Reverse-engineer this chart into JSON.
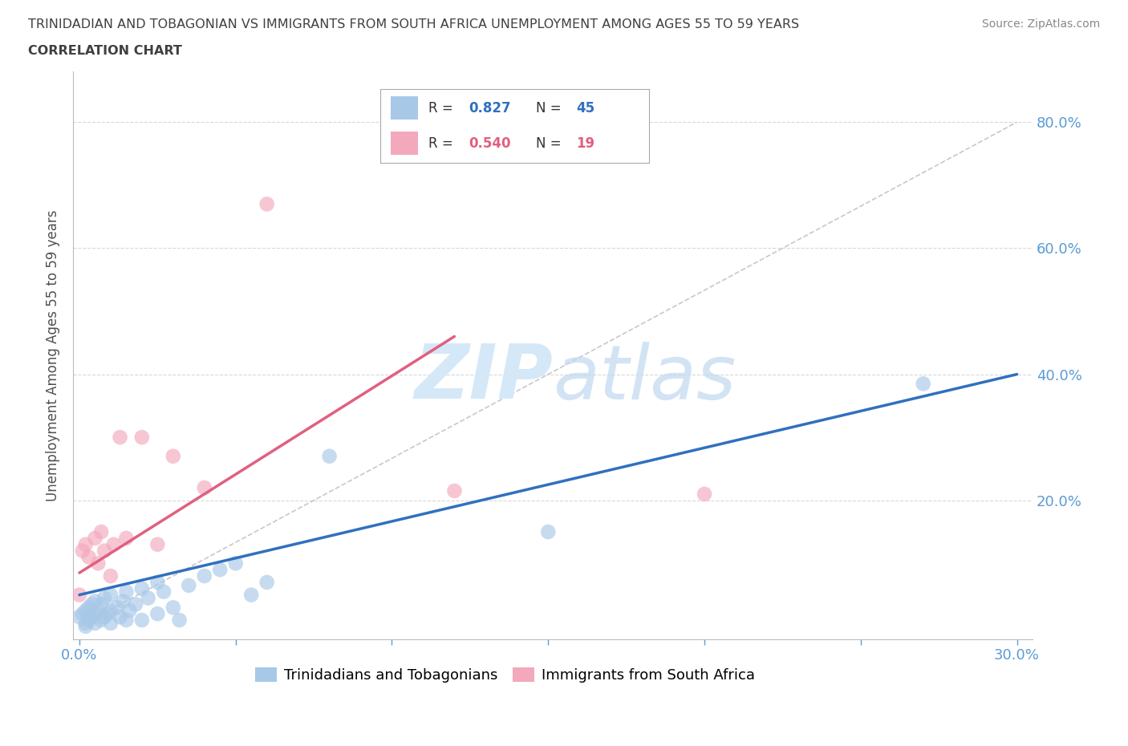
{
  "title_line1": "TRINIDADIAN AND TOBAGONIAN VS IMMIGRANTS FROM SOUTH AFRICA UNEMPLOYMENT AMONG AGES 55 TO 59 YEARS",
  "title_line2": "CORRELATION CHART",
  "source_text": "Source: ZipAtlas.com",
  "ylabel": "Unemployment Among Ages 55 to 59 years",
  "xlim": [
    -0.002,
    0.305
  ],
  "ylim": [
    -0.02,
    0.88
  ],
  "blue_legend_R": "0.827",
  "blue_legend_N": "45",
  "pink_legend_R": "0.540",
  "pink_legend_N": "19",
  "blue_color": "#a8c8e8",
  "pink_color": "#f4a8bc",
  "blue_line_color": "#3070c0",
  "pink_line_color": "#e06080",
  "ref_line_color": "#c8c8c8",
  "grid_color": "#d8d8d8",
  "title_color": "#404040",
  "axis_color": "#5b9bd5",
  "background_color": "#ffffff",
  "blue_scatter_x": [
    0.0,
    0.001,
    0.002,
    0.002,
    0.003,
    0.003,
    0.004,
    0.004,
    0.005,
    0.005,
    0.005,
    0.006,
    0.007,
    0.007,
    0.008,
    0.008,
    0.009,
    0.01,
    0.01,
    0.01,
    0.012,
    0.013,
    0.014,
    0.015,
    0.015,
    0.016,
    0.018,
    0.02,
    0.02,
    0.022,
    0.025,
    0.025,
    0.027,
    0.03,
    0.032,
    0.035,
    0.04,
    0.045,
    0.05,
    0.055,
    0.06,
    0.08,
    0.15,
    0.27,
    0.002
  ],
  "blue_scatter_y": [
    0.015,
    0.02,
    0.005,
    0.025,
    0.01,
    0.03,
    0.015,
    0.035,
    0.005,
    0.02,
    0.04,
    0.025,
    0.01,
    0.035,
    0.015,
    0.045,
    0.02,
    0.005,
    0.025,
    0.05,
    0.03,
    0.015,
    0.04,
    0.01,
    0.055,
    0.025,
    0.035,
    0.01,
    0.06,
    0.045,
    0.02,
    0.07,
    0.055,
    0.03,
    0.01,
    0.065,
    0.08,
    0.09,
    0.1,
    0.05,
    0.07,
    0.27,
    0.15,
    0.385,
    0.0
  ],
  "pink_scatter_x": [
    0.0,
    0.001,
    0.002,
    0.003,
    0.005,
    0.006,
    0.007,
    0.008,
    0.01,
    0.011,
    0.013,
    0.015,
    0.02,
    0.025,
    0.03,
    0.04,
    0.06,
    0.12,
    0.2
  ],
  "pink_scatter_y": [
    0.05,
    0.12,
    0.13,
    0.11,
    0.14,
    0.1,
    0.15,
    0.12,
    0.08,
    0.13,
    0.3,
    0.14,
    0.3,
    0.13,
    0.27,
    0.22,
    0.67,
    0.215,
    0.21
  ],
  "blue_trend_x0": 0.0,
  "blue_trend_x1": 0.3,
  "blue_trend_y0": 0.05,
  "blue_trend_y1": 0.4,
  "pink_trend_x0": 0.0,
  "pink_trend_x1": 0.12,
  "pink_trend_y0": 0.085,
  "pink_trend_y1": 0.46
}
